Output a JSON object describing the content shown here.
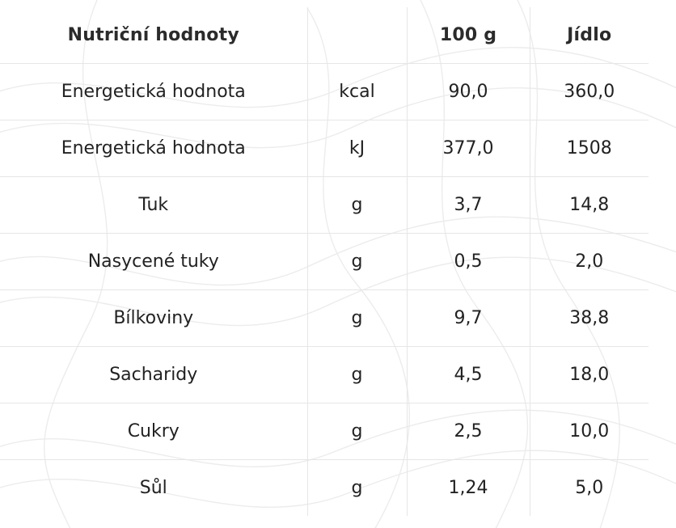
{
  "table": {
    "headers": {
      "name": "Nutriční hodnoty",
      "unit": "",
      "per_100g": "100 g",
      "per_meal": "Jídlo"
    },
    "rows": [
      {
        "name": "Energetická hodnota",
        "unit": "kcal",
        "per_100g": "90,0",
        "per_meal": "360,0"
      },
      {
        "name": "Energetická hodnota",
        "unit": "kJ",
        "per_100g": "377,0",
        "per_meal": "1508"
      },
      {
        "name": "Tuk",
        "unit": "g",
        "per_100g": "3,7",
        "per_meal": "14,8"
      },
      {
        "name": "Nasycené tuky",
        "unit": "g",
        "per_100g": "0,5",
        "per_meal": "2,0"
      },
      {
        "name": "Bílkoviny",
        "unit": "g",
        "per_100g": "9,7",
        "per_meal": "38,8"
      },
      {
        "name": "Sacharidy",
        "unit": "g",
        "per_100g": "4,5",
        "per_meal": "18,0"
      },
      {
        "name": "Cukry",
        "unit": "g",
        "per_100g": "2,5",
        "per_meal": "10,0"
      },
      {
        "name": "Sůl",
        "unit": "g",
        "per_100g": "1,24",
        "per_meal": "5,0"
      }
    ]
  },
  "colors": {
    "text": "#222222",
    "grid": "#e6e6e6",
    "background": "#ffffff",
    "pattern": "#ececec"
  }
}
